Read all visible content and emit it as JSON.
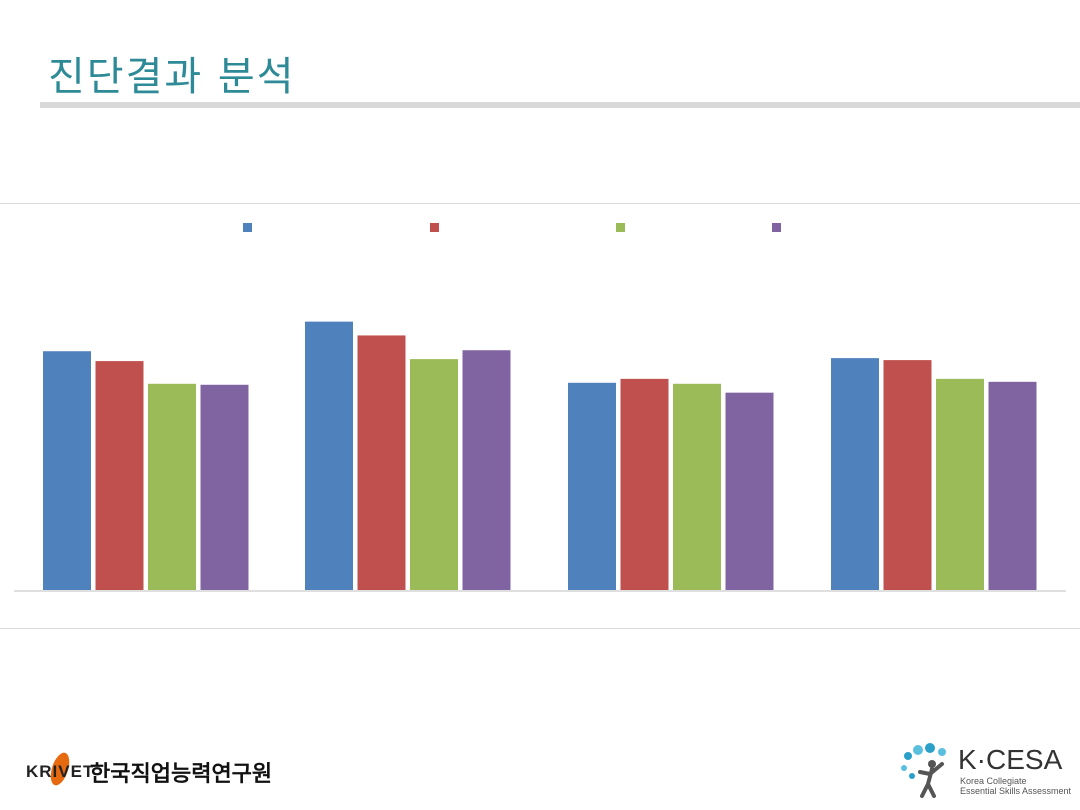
{
  "slide": {
    "title": "진단결과 분석"
  },
  "chart_data": {
    "type": "bar",
    "categories": [
      "",
      "",
      "",
      ""
    ],
    "series": [
      {
        "color": "#4f81bd",
        "values": [
          242,
          272,
          210,
          235
        ]
      },
      {
        "color": "#c0504d",
        "values": [
          232,
          258,
          214,
          233
        ]
      },
      {
        "color": "#9bbb59",
        "values": [
          209,
          234,
          209,
          214
        ]
      },
      {
        "color": "#8064a2",
        "values": [
          208,
          243,
          200,
          211
        ]
      }
    ],
    "title": "",
    "xlabel": "",
    "ylabel": "",
    "ylim": [
      0,
      300
    ],
    "grid": false,
    "legend_position": "top"
  },
  "footer": {
    "left_logo": {
      "brand": "KRIVET",
      "name": "한국직업능력연구원"
    },
    "right_logo": {
      "brand": "K·CESA",
      "tagline_1": "Korea Collegiate",
      "tagline_2": "Essential Skills Assessment"
    }
  }
}
